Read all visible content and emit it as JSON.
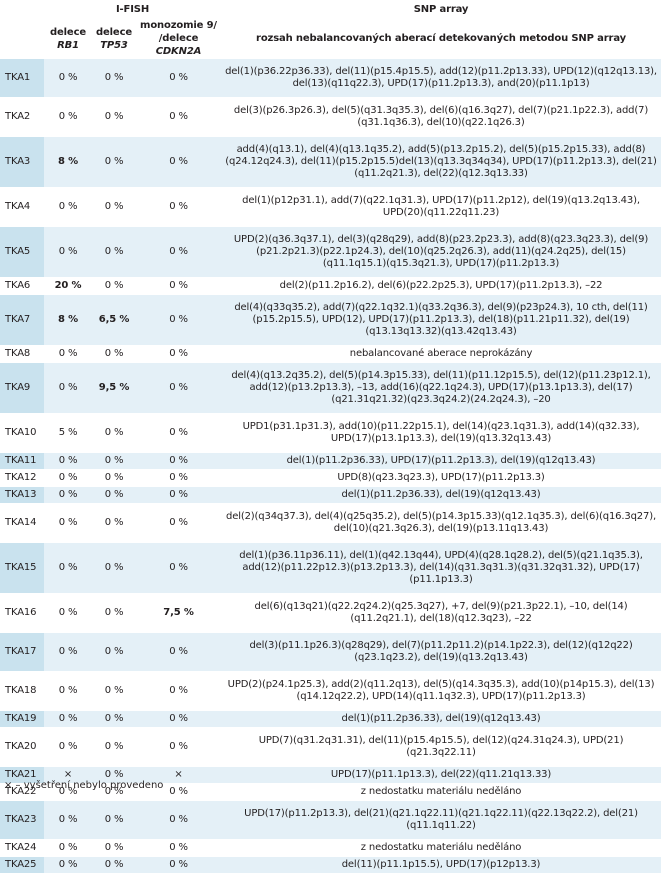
{
  "header": {
    "group_ifish": "I-FISH",
    "group_snp": "SNP array",
    "col1": "delece",
    "col1_gene": "RB1",
    "col2": "delece",
    "col2_gene": "TP53",
    "col3_line1": "monozomie 9/",
    "col3_line2": "/delece",
    "col3_gene": "CDKN2A",
    "col4": "rozsah nebalancovaných aberací detekovaných metodou SNP array"
  },
  "rows": [
    {
      "id": "TKA1",
      "rb1": "0 %",
      "tp53": "0 %",
      "cdkn2a": "0 %",
      "snp": "del(1)(p36.22p36.33), del(11)(p15.4p15.5), add(12)(p11.2p13.33), UPD(12)(q12q13.13), del(13)(q11q22.3), UPD(17)(p11.2p13.3), and(20)(p11.1p13)",
      "bold": []
    },
    {
      "id": "TKA2",
      "rb1": "0 %",
      "tp53": "0 %",
      "cdkn2a": "0 %",
      "snp": "del(3)(p26.3p26.3), del(5)(q31.3q35.3), del(6)(q16.3q27), del(7)(p21.1p22.3), add(7)(q31.1q36.3), del(10)(q22.1q26.3)",
      "bold": []
    },
    {
      "id": "TKA3",
      "rb1": "8 %",
      "tp53": "0 %",
      "cdkn2a": "0 %",
      "snp": "add(4)(q13.1), del(4)(q13.1q35.2), add(5)(p13.2p15.2), del(5)(p15.2p15.33), add(8)(q24.12q24.3), del(11)(p15.2p15.5)del(13)(q13.3q34q34), UPD(17)(p11.2p13.3), del(21)(q11.2q21.3), del(22)(q12.3q13.33)",
      "bold": [
        "rb1"
      ]
    },
    {
      "id": "TKA4",
      "rb1": "0 %",
      "tp53": "0 %",
      "cdkn2a": "0 %",
      "snp": "del(1)(p12p31.1), add(7)(q22.1q31.3), UPD(17)(p11.2p12), del(19)(q13.2q13.43), UPD(20)(q11.22q11.23)",
      "bold": []
    },
    {
      "id": "TKA5",
      "rb1": "0 %",
      "tp53": "0 %",
      "cdkn2a": "0 %",
      "snp": "UPD(2)(q36.3q37.1), del(3)(q28q29), add(8)(p23.2p23.3), add(8)(q23.3q23.3), del(9)(p21.2p21.3)(p22.1p24.3), del(10)(q25.2q26.3), add(11)(q24.2q25), del(15)(q11.1q15.1)(q15.3q21.3), UPD(17)(p11.2p13.3)",
      "bold": []
    },
    {
      "id": "TKA6",
      "rb1": "20 %",
      "tp53": "0 %",
      "cdkn2a": "0 %",
      "snp": "del(2)(p11.2p16.2), del(6)(p22.2p25.3), UPD(17)(p11.2p13.3), –22",
      "bold": [
        "rb1"
      ]
    },
    {
      "id": "TKA7",
      "rb1": "8 %",
      "tp53": "6,5 %",
      "cdkn2a": "0 %",
      "snp": "del(4)(q33q35.2), add(7)(q22.1q32.1)(q33.2q36.3), del(9)(p23p24.3), 10 cth, del(11)(p15.2p15.5), UPD(12), UPD(17)(p11.2p13.3), del(18)(p11.21p11.32), del(19)(q13.13q13.32)(q13.42q13.43)",
      "bold": [
        "rb1",
        "tp53"
      ]
    },
    {
      "id": "TKA8",
      "rb1": "0 %",
      "tp53": "0 %",
      "cdkn2a": "0 %",
      "snp": "nebalancované aberace neprokázány",
      "bold": []
    },
    {
      "id": "TKA9",
      "rb1": "0 %",
      "tp53": "9,5 %",
      "cdkn2a": "0 %",
      "snp": "del(4)(q13.2q35.2), del(5)(p14.3p15.33), del(11)(p11.12p15.5), del(12)(p11.23p12.1), add(12)(p13.2p13.3), –13, add(16)(q22.1q24.3), UPD(17)(p13.1p13.3), del(17)(q21.31q21.32)(q23.3q24.2)(24.2q24.3), –20",
      "bold": [
        "tp53"
      ]
    },
    {
      "id": "TKA10",
      "rb1": "5 %",
      "tp53": "0 %",
      "cdkn2a": "0 %",
      "snp": "UPD1(p31.1p31.3), add(10)(p11.22p15.1), del(14)(q23.1q31.3), add(14)(q32.33), UPD(17)(p13.1p13.3), del(19)(q13.32q13.43)",
      "bold": []
    },
    {
      "id": "TKA11",
      "rb1": "0 %",
      "tp53": "0 %",
      "cdkn2a": "0 %",
      "snp": "del(1)(p11.2p36.33), UPD(17)(p11.2p13.3), del(19)(q12q13.43)",
      "bold": []
    },
    {
      "id": "TKA12",
      "rb1": "0 %",
      "tp53": "0 %",
      "cdkn2a": "0 %",
      "snp": "UPD(8)(q23.3q23.3), UPD(17)(p11.2p13.3)",
      "bold": []
    },
    {
      "id": "TKA13",
      "rb1": "0 %",
      "tp53": "0 %",
      "cdkn2a": "0 %",
      "snp": "del(1)(p11.2p36.33), del(19)(q12q13.43)",
      "bold": []
    },
    {
      "id": "TKA14",
      "rb1": "0 %",
      "tp53": "0 %",
      "cdkn2a": "0 %",
      "snp": "del(2)(q34q37.3), del(4)(q25q35.2), del(5)(p14.3p15.33)(q12.1q35.3), del(6)(q16.3q27), del(10)(q21.3q26.3), del(19)(p13.11q13.43)",
      "bold": []
    },
    {
      "id": "TKA15",
      "rb1": "0 %",
      "tp53": "0 %",
      "cdkn2a": "0 %",
      "snp": "del(1)(p36.11p36.11), del(1)(q42.13q44), UPD(4)(q28.1q28.2), del(5)(q21.1q35.3), add(12)(p11.22p12.3)(p13.2p13.3), del(14)(q31.3q31.3)(q31.32q31.32), UPD(17)(p11.1p13.3)",
      "bold": []
    },
    {
      "id": "TKA16",
      "rb1": "0 %",
      "tp53": "0 %",
      "cdkn2a": "7,5 %",
      "snp": "del(6)(q13q21)(q22.2q24.2)(q25.3q27), +7, del(9)(p21.3p22.1), –10, del(14)(q11.2q21.1), del(18)(q12.3q23), –22",
      "bold": [
        "cdkn2a"
      ]
    },
    {
      "id": "TKA17",
      "rb1": "0 %",
      "tp53": "0 %",
      "cdkn2a": "0 %",
      "snp": "del(3)(p11.1p26.3)(q28q29), del(7)(p11.2p11.2)(p14.1p22.3), del(12)(q12q22)(q23.1q23.2), del(19)(q13.2q13.43)",
      "bold": []
    },
    {
      "id": "TKA18",
      "rb1": "0 %",
      "tp53": "0 %",
      "cdkn2a": "0 %",
      "snp": "UPD(2)(p24.1p25.3), add(2)(q11.2q13), del(5)(q14.3q35.3), add(10)(p14p15.3), del(13)(q14.12q22.2), UPD(14)(q11.1q32.3), UPD(17)(p11.2p13.3)",
      "bold": []
    },
    {
      "id": "TKA19",
      "rb1": "0 %",
      "tp53": "0 %",
      "cdkn2a": "0 %",
      "snp": "del(1)(p11.2p36.33), del(19)(q12q13.43)",
      "bold": []
    },
    {
      "id": "TKA20",
      "rb1": "0 %",
      "tp53": "0 %",
      "cdkn2a": "0 %",
      "snp": "UPD(7)(q31.2q31.31), del(11)(p15.4p15.5), del(12)(q24.31q24.3), UPD(21)(q21.3q22.11)",
      "bold": []
    },
    {
      "id": "TKA21",
      "rb1": "×",
      "tp53": "0 %",
      "cdkn2a": "×",
      "snp": "UPD(17)(p11.1p13.3), del(22)(q11.21q13.33)",
      "bold": []
    },
    {
      "id": "TKA22",
      "rb1": "0 %",
      "tp53": "0 %",
      "cdkn2a": "0 %",
      "snp": "z nedostatku materiálu neděláno",
      "bold": []
    },
    {
      "id": "TKA23",
      "rb1": "0 %",
      "tp53": "0 %",
      "cdkn2a": "0 %",
      "snp": "UPD(17)(p11.2p13.3), del(21)(q21.1q22.11)(q21.1q22.11)(q22.13q22.2), del(21)(q11.1q11.22)",
      "bold": []
    },
    {
      "id": "TKA24",
      "rb1": "0 %",
      "tp53": "0 %",
      "cdkn2a": "0 %",
      "snp": "z nedostatku materiálu neděláno",
      "bold": []
    },
    {
      "id": "TKA25",
      "rb1": "0 %",
      "tp53": "0 %",
      "cdkn2a": "0 %",
      "snp": "del(11)(p11.1p15.5), UPD(17)(p12p13.3)",
      "bold": []
    }
  ],
  "footnote": "× – vyšetření nebylo provedeno",
  "colors": {
    "id_shade": "#c9e2ee",
    "row_shade": "#e4f0f7",
    "text": "#231f20"
  }
}
